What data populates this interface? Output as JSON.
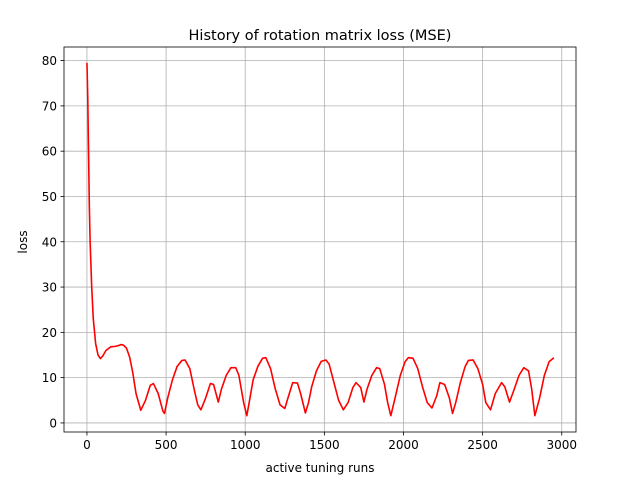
{
  "chart_data": {
    "type": "line",
    "title": "History of rotation matrix loss (MSE)",
    "xlabel": "active tuning runs",
    "ylabel": "loss",
    "xlim": [
      -145,
      3090
    ],
    "ylim": [
      -2,
      83
    ],
    "xticks": [
      0,
      500,
      1000,
      1500,
      2000,
      2500,
      3000
    ],
    "xtick_labels": [
      "0",
      "500",
      "1000",
      "1500",
      "2000",
      "2500",
      "3000"
    ],
    "yticks": [
      0,
      10,
      20,
      30,
      40,
      50,
      60,
      70,
      80
    ],
    "ytick_labels": [
      "0",
      "10",
      "20",
      "30",
      "40",
      "50",
      "60",
      "70",
      "80"
    ],
    "grid": true,
    "colors": {
      "line": "#ff0000",
      "grid": "#b0b0b0",
      "axes": "#000000",
      "background": "#ffffff"
    },
    "series": [
      {
        "x": [
          0,
          5,
          10,
          15,
          20,
          30,
          40,
          55,
          70,
          85,
          100,
          120,
          150,
          180,
          200,
          215,
          230,
          250,
          270,
          290,
          310,
          340,
          370,
          400,
          420,
          450,
          480,
          490,
          510,
          540,
          570,
          600,
          620,
          650,
          680,
          700,
          720,
          750,
          780,
          800,
          830,
          850,
          880,
          910,
          940,
          960,
          990,
          1010,
          1025,
          1050,
          1080,
          1110,
          1130,
          1160,
          1190,
          1220,
          1250,
          1270,
          1300,
          1330,
          1350,
          1380,
          1400,
          1420,
          1450,
          1480,
          1510,
          1530,
          1560,
          1590,
          1620,
          1650,
          1680,
          1700,
          1730,
          1750,
          1770,
          1800,
          1830,
          1850,
          1880,
          1900,
          1920,
          1950,
          1980,
          2010,
          2030,
          2060,
          2090,
          2120,
          2150,
          2180,
          2210,
          2230,
          2260,
          2290,
          2310,
          2330,
          2360,
          2390,
          2410,
          2440,
          2470,
          2500,
          2520,
          2550,
          2580,
          2620,
          2640,
          2670,
          2700,
          2730,
          2760,
          2790,
          2810,
          2830,
          2860,
          2890,
          2920,
          2950
        ],
        "values": [
          79.5,
          72.0,
          60.0,
          48.0,
          40.0,
          30.0,
          23.0,
          17.5,
          15.0,
          14.2,
          14.8,
          16.0,
          16.8,
          16.9,
          17.1,
          17.3,
          17.2,
          16.5,
          14.5,
          11.0,
          6.5,
          2.8,
          5.0,
          8.3,
          8.7,
          6.5,
          2.6,
          2.1,
          5.5,
          9.5,
          12.5,
          13.8,
          13.9,
          12.0,
          7.0,
          4.0,
          2.9,
          5.5,
          8.7,
          8.5,
          4.6,
          7.5,
          10.5,
          12.2,
          12.2,
          10.5,
          4.5,
          1.6,
          4.5,
          9.5,
          12.5,
          14.3,
          14.4,
          12.0,
          7.5,
          4.0,
          3.2,
          5.5,
          8.9,
          8.8,
          6.5,
          2.2,
          4.5,
          8.0,
          11.5,
          13.6,
          13.9,
          13.0,
          9.0,
          5.0,
          2.9,
          4.5,
          7.8,
          8.9,
          7.8,
          4.6,
          7.5,
          10.5,
          12.2,
          12.0,
          8.5,
          4.5,
          1.6,
          6.0,
          10.5,
          13.5,
          14.4,
          14.3,
          12.0,
          8.0,
          4.5,
          3.3,
          6.0,
          8.9,
          8.5,
          5.5,
          2.1,
          4.5,
          9.0,
          12.5,
          13.8,
          13.9,
          12.0,
          8.5,
          4.5,
          2.9,
          6.5,
          8.9,
          8.0,
          4.6,
          7.5,
          10.5,
          12.2,
          11.5,
          7.5,
          1.6,
          5.5,
          10.5,
          13.5,
          14.4
        ]
      }
    ]
  }
}
